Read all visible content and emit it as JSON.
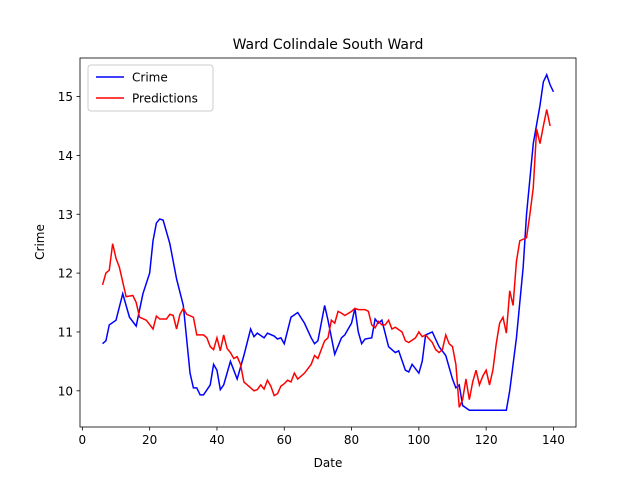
{
  "chart_data": {
    "type": "line",
    "title": "Ward Colindale South Ward",
    "xlabel": "Date",
    "ylabel": "Crime",
    "xlim": [
      -0.7,
      146.7
    ],
    "ylim": [
      9.385,
      15.655
    ],
    "xticks": [
      0,
      20,
      40,
      60,
      80,
      100,
      120,
      140
    ],
    "yticks": [
      10,
      11,
      12,
      13,
      14,
      15
    ],
    "legend": "upper left",
    "grid": false,
    "series": [
      {
        "name": "Crime",
        "color": "#0000ff",
        "x": [
          6,
          7,
          8,
          10,
          12,
          14,
          16,
          18,
          20,
          21,
          22,
          23,
          24,
          26,
          28,
          30,
          32,
          33,
          34,
          35,
          36,
          38,
          39,
          40,
          41,
          42,
          44,
          46,
          48,
          50,
          51,
          52,
          54,
          55,
          57,
          58,
          59,
          60,
          62,
          64,
          66,
          68,
          69,
          70,
          72,
          73,
          75,
          77,
          78,
          80,
          81,
          82,
          83,
          84,
          86,
          87,
          88,
          89,
          91,
          93,
          94,
          96,
          97,
          98,
          100,
          101,
          102,
          104,
          106,
          108,
          110,
          111,
          112,
          113,
          115,
          117,
          120,
          123,
          126,
          127,
          129,
          131,
          132,
          134,
          136,
          137,
          138,
          139,
          140
        ],
        "values": [
          10.8,
          10.85,
          11.12,
          11.2,
          11.65,
          11.25,
          11.1,
          11.65,
          12.0,
          12.55,
          12.85,
          12.92,
          12.9,
          12.5,
          11.9,
          11.45,
          10.3,
          10.05,
          10.05,
          9.93,
          9.93,
          10.1,
          10.45,
          10.35,
          10.02,
          10.1,
          10.5,
          10.2,
          10.6,
          11.05,
          10.92,
          10.98,
          10.9,
          10.98,
          10.93,
          10.88,
          10.9,
          10.8,
          11.25,
          11.33,
          11.15,
          10.9,
          10.8,
          10.85,
          11.45,
          11.2,
          10.62,
          10.9,
          10.95,
          11.15,
          11.4,
          11.0,
          10.8,
          10.88,
          10.9,
          11.22,
          11.15,
          11.2,
          10.75,
          10.65,
          10.68,
          10.35,
          10.32,
          10.45,
          10.3,
          10.5,
          10.95,
          11.0,
          10.75,
          10.6,
          10.2,
          10.05,
          10.1,
          9.75,
          9.67,
          9.67,
          9.67,
          9.67,
          9.67,
          10.0,
          10.9,
          12.1,
          13.0,
          14.2,
          14.85,
          15.25,
          15.37,
          15.2,
          15.08
        ]
      },
      {
        "name": "Predictions",
        "color": "#ff0000",
        "x": [
          6,
          7,
          8,
          9,
          10,
          11,
          12,
          13,
          15,
          16,
          17,
          19,
          21,
          22,
          23,
          25,
          26,
          27,
          28,
          29,
          30,
          31,
          33,
          34,
          36,
          37,
          38,
          39,
          40,
          41,
          42,
          43,
          44,
          45,
          46,
          47,
          48,
          50,
          51,
          52,
          53,
          54,
          55,
          56,
          57,
          58,
          59,
          60,
          61,
          62,
          63,
          64,
          66,
          68,
          69,
          70,
          72,
          73,
          74,
          75,
          76,
          77,
          78,
          80,
          81,
          82,
          84,
          85,
          86,
          87,
          88,
          89,
          90,
          91,
          92,
          93,
          95,
          96,
          97,
          99,
          100,
          101,
          102,
          104,
          105,
          106,
          107,
          108,
          109,
          110,
          111,
          112,
          113,
          114,
          115,
          116,
          117,
          118,
          119,
          120,
          121,
          122,
          123,
          124,
          125,
          126,
          127,
          128,
          129,
          130,
          132,
          133,
          134,
          135,
          136,
          137,
          138,
          139
        ],
        "values": [
          11.8,
          12.0,
          12.05,
          12.5,
          12.25,
          12.1,
          11.85,
          11.6,
          11.62,
          11.5,
          11.25,
          11.2,
          11.05,
          11.27,
          11.22,
          11.22,
          11.3,
          11.28,
          11.05,
          11.3,
          11.4,
          11.3,
          11.25,
          10.95,
          10.95,
          10.9,
          10.75,
          10.7,
          10.9,
          10.68,
          10.95,
          10.72,
          10.65,
          10.55,
          10.58,
          10.45,
          10.15,
          10.05,
          10.0,
          10.02,
          10.1,
          10.03,
          10.18,
          10.08,
          9.92,
          9.95,
          10.08,
          10.12,
          10.18,
          10.15,
          10.3,
          10.2,
          10.3,
          10.45,
          10.6,
          10.55,
          10.85,
          10.9,
          11.2,
          11.15,
          11.35,
          11.32,
          11.28,
          11.35,
          11.4,
          11.38,
          11.38,
          11.35,
          11.12,
          11.07,
          11.18,
          11.12,
          11.12,
          11.2,
          11.05,
          11.08,
          11.0,
          10.85,
          10.82,
          10.9,
          11.0,
          10.92,
          10.95,
          10.82,
          10.7,
          10.65,
          10.7,
          10.95,
          10.8,
          10.75,
          10.45,
          9.72,
          9.85,
          10.2,
          9.85,
          10.15,
          10.35,
          10.1,
          10.25,
          10.35,
          10.1,
          10.35,
          10.8,
          11.15,
          11.25,
          10.98,
          11.7,
          11.45,
          12.2,
          12.55,
          12.6,
          13.0,
          13.45,
          14.45,
          14.2,
          14.5,
          14.78,
          14.5
        ]
      }
    ]
  }
}
